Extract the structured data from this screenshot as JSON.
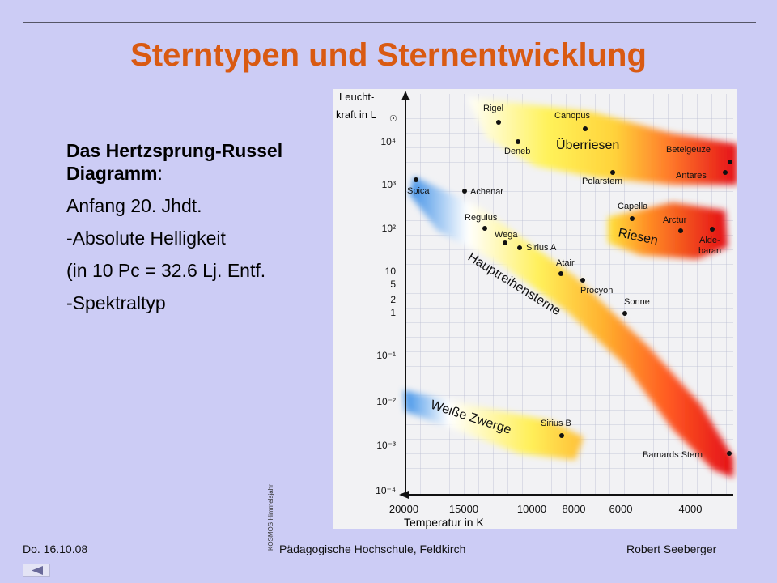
{
  "slide": {
    "title": "Sterntypen und Sternentwicklung",
    "heading_bold": "Das Hertzsprung-Russel Diagramm",
    "heading_suffix": ":",
    "bullets": [
      "Anfang 20. Jhdt.",
      "-Absolute Helligkeit",
      "(in 10 Pc = 32.6 Lj. Entf.",
      "-Spektraltyp"
    ],
    "credit": "KOSMOS Himmelsjahr"
  },
  "footer": {
    "date": "Do. 16.10.08",
    "institution": "Pädagogische Hochschule, Feldkirch",
    "author": "Robert  Seeberger"
  },
  "colors": {
    "title": "#d95a12",
    "background": "#ccccf5"
  },
  "icons": {
    "nav": "triangle-left-icon"
  },
  "diagram": {
    "y_axis_title": [
      "Leucht-",
      "kraft in L"
    ],
    "sun_symbol": "☉",
    "x_axis_title": "Temperatur in K",
    "y_ticks": [
      "10⁴",
      "10³",
      "10²",
      "10",
      "5",
      "2",
      "1",
      "10⁻¹",
      "10⁻²",
      "10⁻³",
      "10⁻⁴"
    ],
    "x_ticks": [
      "20000",
      "15000",
      "10000",
      "8000",
      "6000",
      "4000"
    ],
    "regions": [
      "Überriesen",
      "Riesen",
      "Hauptreihensterne",
      "Weiße Zwerge"
    ],
    "stars": [
      "Rigel",
      "Canopus",
      "Deneb",
      "Beteigeuze",
      "Antares",
      "Polarstern",
      "Spica",
      "Achenar",
      "Capella",
      "Arctur",
      "Alde-",
      "baran",
      "Regulus",
      "Wega",
      "Sirius A",
      "Atair",
      "Procyon",
      "Sonne",
      "Sirius B",
      "Barnards Stern"
    ]
  }
}
